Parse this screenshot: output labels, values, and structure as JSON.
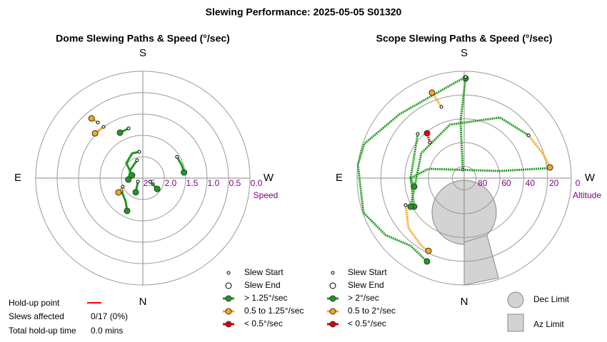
{
  "title": "Slewing Performance: 2025-05-05 S01320",
  "holdup": {
    "label": "Hold-up point",
    "color": "#ff0000",
    "rows": [
      [
        "Slews affected",
        "0/17 (0%)"
      ],
      [
        "Total hold-up time",
        "0.0 mins"
      ]
    ]
  },
  "chart_data": [
    {
      "type": "polar",
      "title": "Dome Slewing Paths & Speed (°/sec)",
      "directions": {
        "S": "S",
        "E": "E",
        "W": "W",
        "N": "N"
      },
      "r_label": "Speed",
      "rlim": [
        2.5,
        0.0
      ],
      "rticks": [
        2.5,
        {
          "value": 2,
          "label": "2.0"
        },
        1.5,
        {
          "value": 1,
          "label": "1.0"
        },
        0.5,
        {
          "value": 0,
          "label": "0.0"
        }
      ],
      "line_style": "solid",
      "legend": {
        "start": "Slew Start",
        "end": "Slew End",
        "items": [
          {
            "label": "> 1.25°/sec",
            "color": "#1f9a1f"
          },
          {
            "label": "0.5 to 1.25°/sec",
            "color": "#f5a623"
          },
          {
            "label": "< 0.5°/sec",
            "color": "#dd0000"
          }
        ]
      },
      "paths": [
        {
          "color": "#f5a623",
          "az": [
            141.1,
            139.4
          ],
          "r": [
            0.83,
            0.66
          ]
        },
        {
          "color": "#f5a623",
          "az": [
            142.6,
            133.2
          ],
          "r": [
            0.99,
            0.97
          ]
        },
        {
          "color": "#1f9a1f",
          "az": [
            164.1,
            153.4
          ],
          "r": [
            1.29,
            1.31
          ]
        },
        {
          "color": "#1f9a1f",
          "az": [
            238,
            251.9,
            262.1
          ],
          "r": [
            1.56,
            1.54,
            1.53
          ]
        },
        {
          "color": "#1f9a1f",
          "az": [
            172.3,
            156.8,
            132.3,
            104.9
          ],
          "r": [
            1.88,
            1.87,
            1.98,
            2.24
          ]
        },
        {
          "color": "#1f9a1f",
          "az": [
            162.3,
            125.2,
            84.3
          ],
          "r": [
            2.06,
            2.15,
            2.16
          ]
        },
        {
          "color": "#1f9a1f",
          "az": [
            59,
            36,
            25.6
          ],
          "r": [
            1.92,
            1.82,
            1.65
          ]
        },
        {
          "color": "#1f9a1f",
          "az": [
            54.5,
            26.6
          ],
          "r": [
            2.36,
            2.13
          ]
        },
        {
          "color": "#1f9a1f",
          "az": [
            296.6,
            306.9
          ],
          "r": [
            2.31,
            2.08
          ]
        },
        {
          "color": "#f5a623",
          "az": [
            66.8,
            59.5
          ],
          "r": [
            1.99,
            1.84
          ]
        }
      ]
    },
    {
      "type": "polar",
      "title": "Scope Slewing Paths & Speed (°/sec)",
      "directions": {
        "S": "S",
        "E": "E",
        "W": "W",
        "N": "N"
      },
      "r_label": "Altitude",
      "rlim": [
        90,
        0
      ],
      "rticks": [
        80,
        60,
        40,
        20,
        0
      ],
      "line_style": "dotted",
      "legend": {
        "start": "Slew Start",
        "end": "Slew End",
        "items": [
          {
            "label": "> 2°/sec",
            "color": "#1f9a1f"
          },
          {
            "label": "0.5 to 2°/sec",
            "color": "#f5a623"
          },
          {
            "label": "< 0.5°/sec",
            "color": "#dd0000"
          }
        ]
      },
      "limits_legend": {
        "dec": "Dec Limit",
        "az": "Az Limit"
      },
      "paths": [
        {
          "color": "#1f9a1f",
          "az": [
            170.5,
            176.4,
            180.8
          ],
          "r": [
            82.7,
            41.9,
            6
          ]
        },
        {
          "color": "#1f9a1f",
          "az": [
            180.8,
            171.3,
            135,
            109,
            97.2,
            71,
            54,
            38.3,
            24
          ],
          "r": [
            4.8,
            11.1,
            13.6,
            1.2,
            0,
            0.5,
            8.4,
            17.4,
            13.2
          ]
        },
        {
          "color": "#1f9a1f",
          "az": [
            263.3,
            258.7,
            104.6,
            90,
            60.3
          ],
          "r": [
            17.5,
            59.4,
            59,
            45,
            41.6
          ]
        },
        {
          "color": "#1f9a1f",
          "az": [
            236.3,
            210.5,
            165.1,
            120.3,
            61.9
          ],
          "r": [
            25,
            30.8,
            43.4,
            48.3,
            39
          ]
        },
        {
          "color": "#f5a623",
          "az": [
            236.3,
            252.4,
            262.9
          ],
          "r": [
            25,
            20.8,
            17.4
          ]
        },
        {
          "color": "#f5a623",
          "az": [
            65.1,
            48.1,
            32.3,
            26.1
          ],
          "r": [
            35.8,
            27.1,
            22.6,
            21.8
          ]
        },
        {
          "color": "#f5a623",
          "az": [
            162.3,
            159.4
          ],
          "r": [
            27,
            13.2
          ]
        },
        {
          "color": "#dd0000",
          "az": [
            136.2,
            140.5
          ],
          "r": [
            48.4,
            41
          ]
        },
        {
          "color": "#1f9a1f",
          "az": [
            133.6,
            90,
            80.3
          ],
          "r": [
            36.1,
            45,
            47.4
          ]
        }
      ]
    }
  ]
}
